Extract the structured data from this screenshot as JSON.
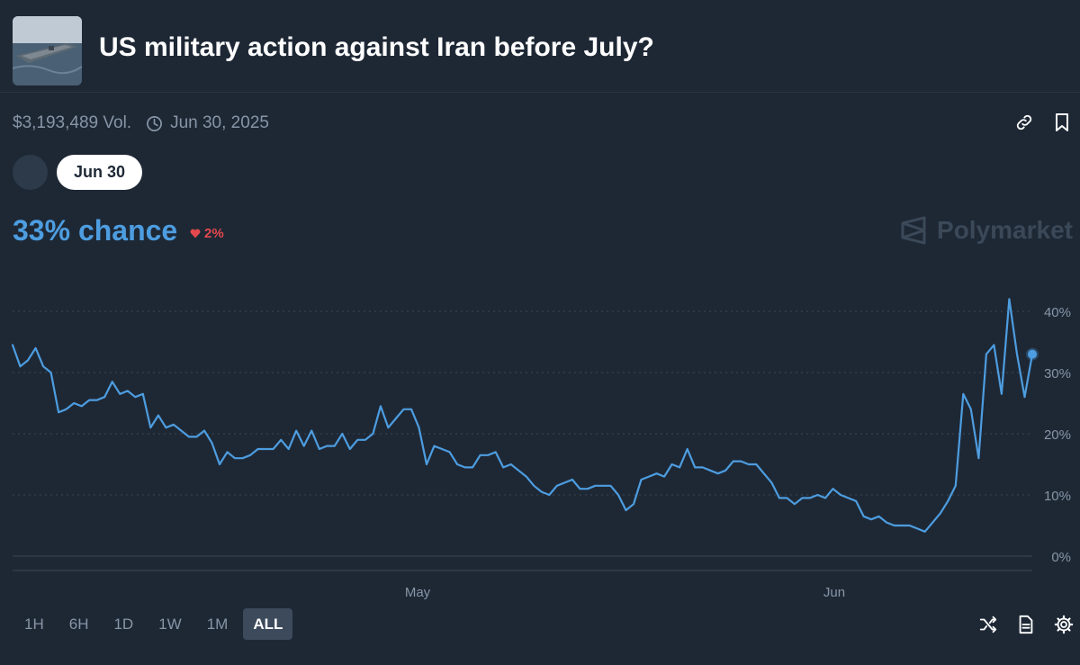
{
  "market": {
    "title": "US military action against Iran before July?",
    "volume": "$3,193,489 Vol.",
    "end_date": "Jun 30, 2025",
    "selected_outcome": "Jun 30",
    "chance_text": "33% chance",
    "change_text": "2%",
    "change_direction": "down",
    "brand": "Polymarket"
  },
  "time_ranges": [
    {
      "label": "1H",
      "active": false
    },
    {
      "label": "6H",
      "active": false
    },
    {
      "label": "1D",
      "active": false
    },
    {
      "label": "1W",
      "active": false
    },
    {
      "label": "1M",
      "active": false
    },
    {
      "label": "ALL",
      "active": true
    }
  ],
  "icons": {
    "top": [
      "link-icon",
      "bookmark-icon"
    ],
    "bottom": [
      "shuffle-icon",
      "document-icon",
      "gear-icon"
    ]
  },
  "colors": {
    "line": "#4d9de0",
    "accent": "#4d9de0",
    "down": "#e5484d",
    "background": "#1e2835"
  },
  "chart_data": {
    "type": "line",
    "title": "",
    "xlabel": "",
    "ylabel": "",
    "x_tick_labels": [
      "May",
      "Jun"
    ],
    "y_tick_labels": [
      "0%",
      "10%",
      "20%",
      "30%",
      "40%"
    ],
    "ylim": [
      0,
      45
    ],
    "grid": true,
    "series": [
      {
        "values": [
          34.5,
          31,
          32,
          34,
          31,
          30,
          23.5,
          24,
          25,
          24.5,
          25.5,
          25.5,
          26,
          28.5,
          26.5,
          27,
          26,
          26.5,
          21,
          23,
          21,
          21.5,
          20.5,
          19.5,
          19.5,
          20.5,
          18.5,
          15,
          17,
          16,
          16,
          16.5,
          17.5,
          17.5,
          17.5,
          19,
          17.5,
          20.5,
          18,
          20.5,
          17.5,
          18,
          18,
          20,
          17.5,
          19,
          19,
          20,
          24.5,
          21,
          22.5,
          24,
          24,
          21,
          15,
          18,
          17.5,
          17,
          15,
          14.5,
          14.5,
          16.5,
          16.5,
          17,
          14.5,
          15,
          14,
          13,
          11.5,
          10.5,
          10,
          11.5,
          12,
          12.5,
          11,
          11,
          11.5,
          11.5,
          11.5,
          10,
          7.5,
          8.5,
          12.5,
          13,
          13.5,
          13,
          15,
          14.5,
          17.5,
          14.5,
          14.5,
          14,
          13.5,
          14,
          15.5,
          15.5,
          15,
          15,
          13.5,
          12,
          9.5,
          9.5,
          8.5,
          9.5,
          9.5,
          10,
          9.5,
          11,
          10,
          9.5,
          9,
          6.5,
          6,
          6.5,
          5.5,
          5,
          5,
          5,
          4.5,
          4,
          5.5,
          7,
          9,
          11.5,
          26.5,
          24,
          16,
          33,
          34.5,
          26.5,
          42,
          33,
          26,
          33
        ]
      }
    ],
    "current_value": 33
  }
}
